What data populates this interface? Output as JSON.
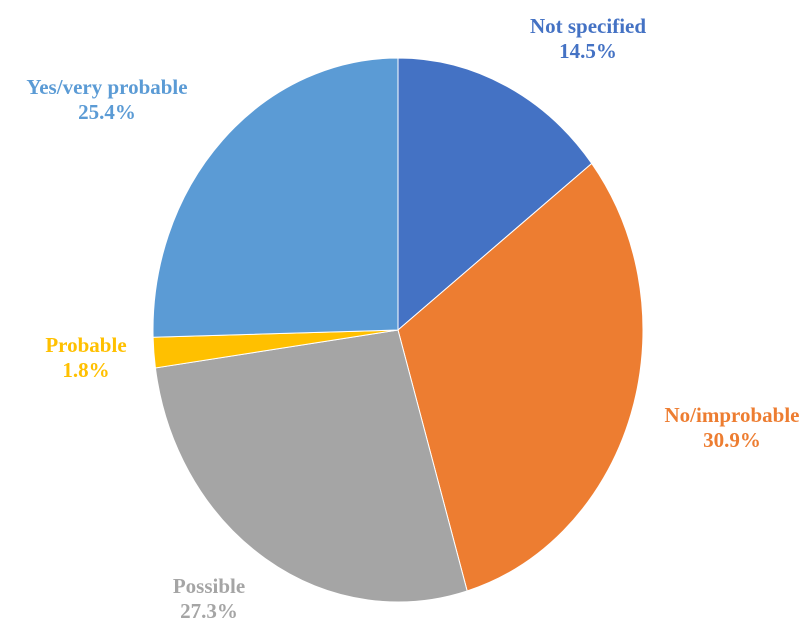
{
  "chart_data": {
    "type": "pie",
    "title": "",
    "slices": [
      {
        "label": "Not specified",
        "value": 14.5,
        "display": "14.5%",
        "color": "#4472C4"
      },
      {
        "label": "No/improbable",
        "value": 30.9,
        "display": "30.9%",
        "color": "#ED7D31"
      },
      {
        "label": "Possible",
        "value": 27.3,
        "display": "27.3%",
        "color": "#A5A5A5"
      },
      {
        "label": "Probable",
        "value": 1.8,
        "display": "1.8%",
        "color": "#FFC000"
      },
      {
        "label": "Yes/very probable",
        "value": 25.4,
        "display": "25.4%",
        "color": "#5B9BD5"
      }
    ],
    "start_angle": "12 o'clock",
    "direction": "clockwise",
    "legend": "none",
    "data_labels": "outside"
  }
}
